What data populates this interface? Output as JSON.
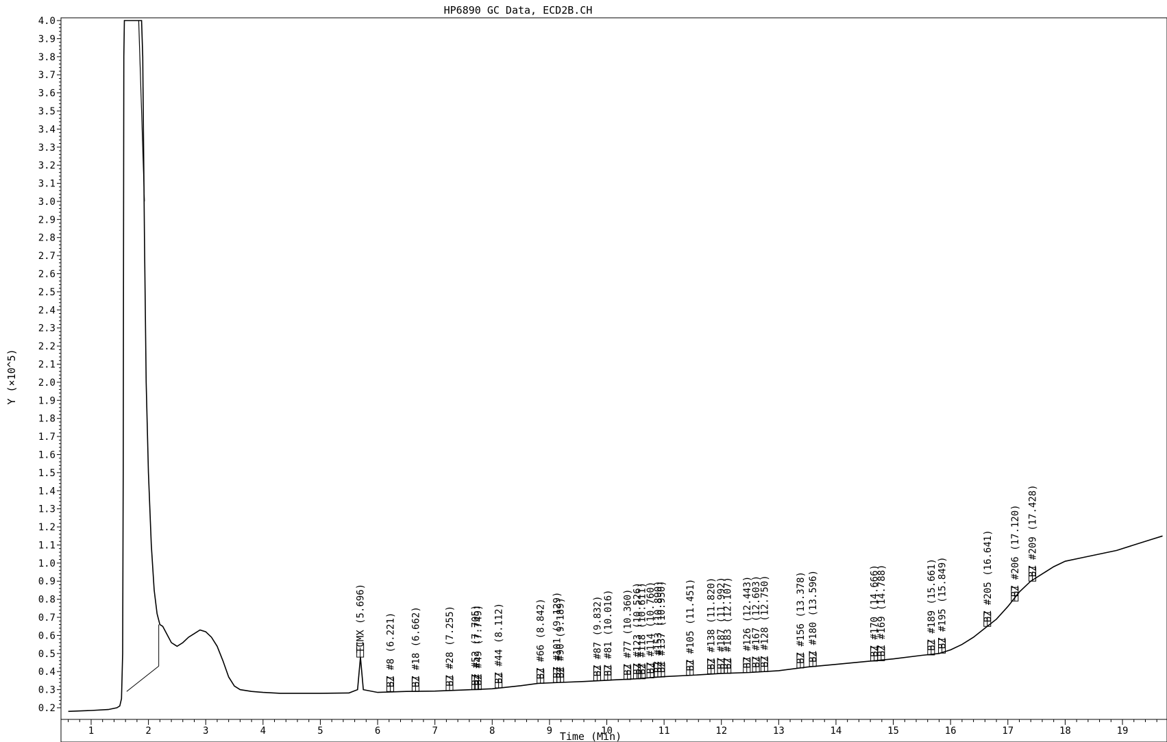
{
  "chart_data": {
    "type": "line",
    "title": "HP6890 GC Data, ECD2B.CH",
    "xlabel": "Time (Min)",
    "ylabel": "Y (×10^5)",
    "xlim": [
      0.6,
      19.7
    ],
    "ylim": [
      0.18,
      4.0
    ],
    "x_major_ticks": [
      1,
      2,
      3,
      4,
      5,
      6,
      7,
      8,
      9,
      10,
      11,
      12,
      13,
      14,
      15,
      16,
      17,
      18,
      19
    ],
    "y_major_ticks": [
      "0.2",
      "0.3",
      "0.4",
      "0.5",
      "0.6",
      "0.7",
      "0.8",
      "0.9",
      "1.0",
      "1.1",
      "1.2",
      "1.3",
      "1.4",
      "1.5",
      "1.6",
      "1.7",
      "1.8",
      "1.9",
      "2.0",
      "2.1",
      "2.2",
      "2.3",
      "2.4",
      "2.5",
      "2.6",
      "2.7",
      "2.8",
      "2.9",
      "3.0",
      "3.1",
      "3.2",
      "3.3",
      "3.4",
      "3.5",
      "3.6",
      "3.7",
      "3.8",
      "3.9",
      "4.0"
    ],
    "grid": false,
    "line_color": "#000000",
    "trace": {
      "x": [
        0.6,
        1.0,
        1.3,
        1.45,
        1.5,
        1.53,
        1.55,
        1.56,
        1.57,
        1.58,
        1.6,
        1.62,
        1.65,
        1.7,
        1.8,
        1.85,
        1.88,
        1.9,
        1.93,
        1.96,
        2.0,
        2.05,
        2.1,
        2.15,
        2.2,
        2.25,
        2.3,
        2.4,
        2.5,
        2.6,
        2.7,
        2.8,
        2.9,
        3.0,
        3.1,
        3.2,
        3.3,
        3.4,
        3.5,
        3.6,
        3.8,
        4.0,
        4.3,
        4.6,
        5.0,
        5.5,
        5.65,
        5.7,
        5.75,
        6.0,
        6.5,
        7.0,
        7.5,
        8.0,
        8.5,
        8.8,
        9.2,
        9.6,
        10.0,
        10.5,
        11.0,
        11.5,
        12.0,
        12.5,
        13.0,
        13.5,
        14.0,
        14.5,
        15.0,
        15.5,
        15.8,
        16.0,
        16.2,
        16.4,
        16.6,
        16.8,
        17.0,
        17.2,
        17.4,
        17.6,
        17.8,
        18.0,
        18.3,
        18.6,
        18.9,
        19.2,
        19.5,
        19.7
      ],
      "y": [
        0.18,
        0.185,
        0.19,
        0.2,
        0.21,
        0.25,
        0.5,
        1.5,
        3.8,
        4.0,
        4.0,
        4.0,
        4.0,
        4.0,
        4.0,
        4.0,
        4.0,
        3.8,
        2.8,
        2.0,
        1.5,
        1.1,
        0.85,
        0.72,
        0.66,
        0.65,
        0.62,
        0.56,
        0.54,
        0.56,
        0.59,
        0.61,
        0.63,
        0.62,
        0.59,
        0.54,
        0.46,
        0.37,
        0.32,
        0.3,
        0.29,
        0.285,
        0.28,
        0.28,
        0.28,
        0.282,
        0.3,
        0.48,
        0.3,
        0.285,
        0.29,
        0.292,
        0.298,
        0.305,
        0.322,
        0.335,
        0.34,
        0.345,
        0.352,
        0.36,
        0.372,
        0.38,
        0.39,
        0.395,
        0.405,
        0.425,
        0.44,
        0.455,
        0.47,
        0.49,
        0.5,
        0.52,
        0.55,
        0.59,
        0.64,
        0.69,
        0.76,
        0.84,
        0.9,
        0.94,
        0.98,
        1.01,
        1.03,
        1.05,
        1.07,
        1.1,
        1.13,
        1.15
      ]
    },
    "peaks": [
      {
        "label": "TCMX (5.696)",
        "x": 5.696,
        "y": 0.48
      },
      {
        "label": "BZ #8 (6.221)",
        "x": 6.221,
        "y": 0.29
      },
      {
        "label": "BZ #18 (6.662)",
        "x": 6.662,
        "y": 0.29
      },
      {
        "label": "BZ #28 (7.255)",
        "x": 7.255,
        "y": 0.295
      },
      {
        "label": "BZ #52 (7.705)",
        "x": 7.705,
        "y": 0.3
      },
      {
        "label": "BZ #49 (7.749)",
        "x": 7.749,
        "y": 0.3
      },
      {
        "label": "BZ #44 (8.112)",
        "x": 8.112,
        "y": 0.31
      },
      {
        "label": "BZ #66 (8.842)",
        "x": 8.842,
        "y": 0.335
      },
      {
        "label": "BZ #101 (9.129)",
        "x": 9.129,
        "y": 0.34
      },
      {
        "label": "BZ #90 (9.189)",
        "x": 9.189,
        "y": 0.34
      },
      {
        "label": "BZ #87 (9.832)",
        "x": 9.832,
        "y": 0.35
      },
      {
        "label": "BZ #81 (10.016)",
        "x": 10.016,
        "y": 0.352
      },
      {
        "label": "BZ #77 (10.360)",
        "x": 10.36,
        "y": 0.356
      },
      {
        "label": "BZ #123 (10.526)",
        "x": 10.526,
        "y": 0.36
      },
      {
        "label": "BZ #118 (10.611)",
        "x": 10.611,
        "y": 0.36
      },
      {
        "label": "BZ #114 (10.760)",
        "x": 10.76,
        "y": 0.365
      },
      {
        "label": "BZ #153 (10.890)",
        "x": 10.89,
        "y": 0.37
      },
      {
        "label": "BZ #137 (10.950)",
        "x": 10.95,
        "y": 0.37
      },
      {
        "label": "BZ #105 (11.451)",
        "x": 11.451,
        "y": 0.38
      },
      {
        "label": "BZ #138 (11.820)",
        "x": 11.82,
        "y": 0.388
      },
      {
        "label": "BZ #187 (11.992)",
        "x": 11.992,
        "y": 0.39
      },
      {
        "label": "BZ #183 (12.107)",
        "x": 12.107,
        "y": 0.39
      },
      {
        "label": "BZ #126 (12.443)",
        "x": 12.443,
        "y": 0.395
      },
      {
        "label": "BZ #167 (12.603)",
        "x": 12.603,
        "y": 0.398
      },
      {
        "label": "BZ #128 (12.750)",
        "x": 12.75,
        "y": 0.4
      },
      {
        "label": "BZ #156 (13.378)",
        "x": 13.378,
        "y": 0.42
      },
      {
        "label": "BZ #180 (13.596)",
        "x": 13.596,
        "y": 0.428
      },
      {
        "label": "BZ #170 (14.666)",
        "x": 14.666,
        "y": 0.458
      },
      {
        "label": "BZ #169 (14.788)",
        "x": 14.788,
        "y": 0.46
      },
      {
        "label": "BZ #189 (15.661)",
        "x": 15.661,
        "y": 0.492
      },
      {
        "label": "BZ #195 (15.849)",
        "x": 15.849,
        "y": 0.502
      },
      {
        "label": "BZ #205 (16.641)",
        "x": 16.641,
        "y": 0.65
      },
      {
        "label": "BZ #206 (17.120)",
        "x": 17.12,
        "y": 0.79
      },
      {
        "label": "BZ #209 (17.428)",
        "x": 17.428,
        "y": 0.9
      }
    ]
  }
}
